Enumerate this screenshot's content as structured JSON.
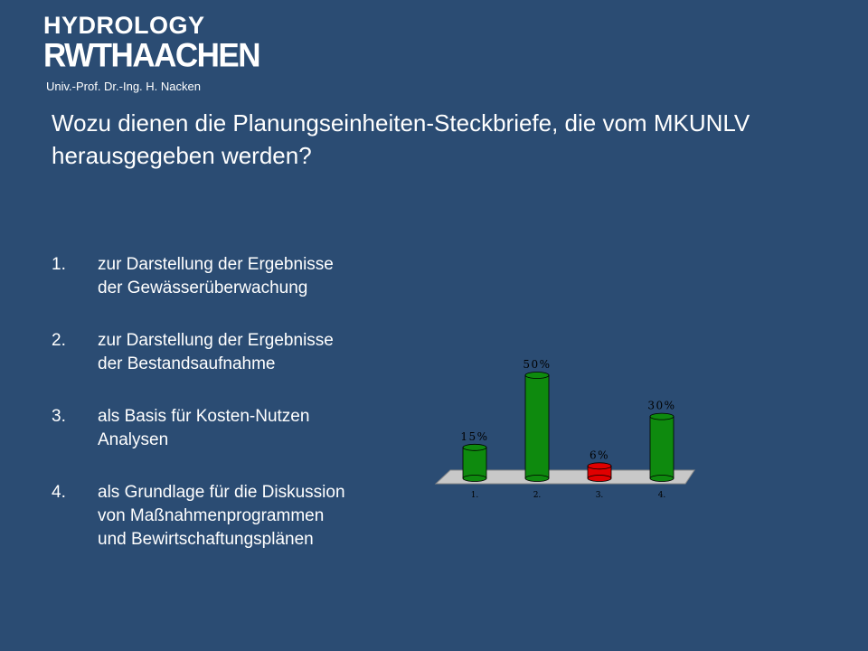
{
  "logo": {
    "line1": "HYDROLOGY",
    "line2": "RWTHAACHEN",
    "line3": "Univ.-Prof. Dr.-Ing. H. Nacken"
  },
  "question": "Wozu dienen die Planungseinheiten-Steckbriefe, die vom MKUNLV herausgegeben  werden?",
  "options": [
    {
      "num": "1.",
      "text": "zur Darstellung der Ergebnisse\nder Gewässerüberwachung"
    },
    {
      "num": "2.",
      "text": "zur Darstellung der Ergebnisse\nder Bestandsaufnahme"
    },
    {
      "num": "3.",
      "text": "als Basis für Kosten-Nutzen\nAnalysen"
    },
    {
      "num": "4.",
      "text": "als Grundlage für die Diskussion\nvon Maßnahmenprogrammen\nund Bewirtschaftungsplänen"
    }
  ],
  "chart_data": {
    "type": "bar",
    "categories": [
      "1.",
      "2.",
      "3.",
      "4."
    ],
    "values": [
      15,
      50,
      6,
      30
    ],
    "data_labels": [
      "15%",
      "50%",
      "6%",
      "30%"
    ],
    "colors": [
      "#0E8A0E",
      "#0E8A0E",
      "#E00000",
      "#0E8A0E"
    ],
    "ylim": [
      0,
      50
    ],
    "grid": false,
    "legend": "none",
    "title": "",
    "xlabel": "",
    "ylabel": ""
  },
  "colors": {
    "background": "#2B4C73",
    "text": "#FFFFFF",
    "bar_green": "#0E8A0E",
    "bar_red": "#E00000",
    "floor": "#C8C8C8"
  }
}
